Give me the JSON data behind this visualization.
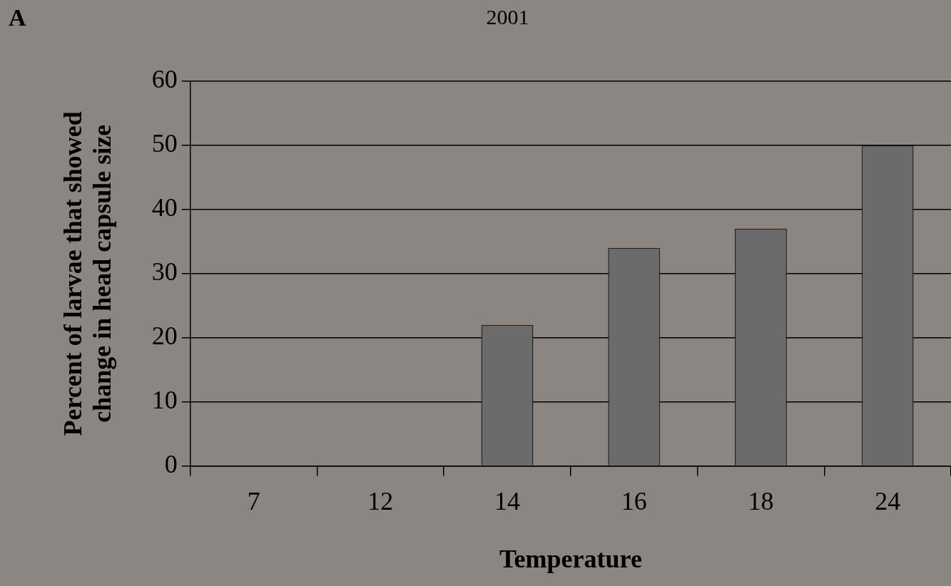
{
  "chart_data": {
    "type": "bar",
    "title": "2001",
    "annotations": [
      "A"
    ],
    "xlabel": "Temperature",
    "ylabel": "Percent of larvae that showed\nchange in head capsule size",
    "categories": [
      "7",
      "12",
      "14",
      "16",
      "18",
      "24"
    ],
    "values": [
      0,
      0,
      22,
      34,
      37,
      50
    ],
    "color": "#6b6b6b",
    "ylim": [
      0,
      60
    ],
    "yticks": [
      0,
      10,
      20,
      30,
      40,
      50,
      60
    ],
    "grid": "y",
    "legend": false
  }
}
